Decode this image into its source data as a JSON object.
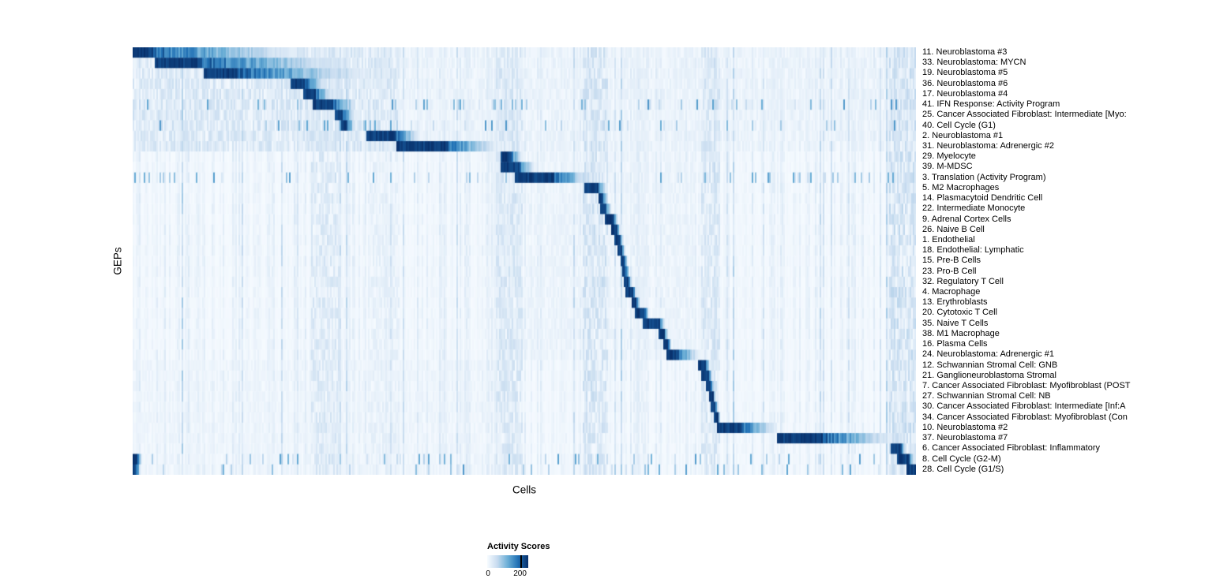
{
  "chart_data": {
    "type": "heatmap",
    "title": "",
    "xlabel": "Cells",
    "ylabel": "GEPs",
    "legend": {
      "title": "Activity Scores",
      "min_label": "0",
      "max_label": "200",
      "min": 0,
      "max": 200,
      "tick_fraction": 0.8
    },
    "colormap_stops": [
      [
        0,
        "#f7fbff"
      ],
      [
        0.25,
        "#c6dbef"
      ],
      [
        0.5,
        "#6baed6"
      ],
      [
        0.75,
        "#2171b5"
      ],
      [
        1,
        "#08306b"
      ]
    ],
    "streaks": [
      {
        "start": 0.228,
        "end": 0.262,
        "strength": 0.2
      },
      {
        "start": 0.3,
        "end": 0.34,
        "strength": 0.12
      },
      {
        "start": 0.463,
        "end": 0.497,
        "strength": 0.22
      },
      {
        "start": 0.575,
        "end": 0.607,
        "strength": 0.26
      },
      {
        "start": 0.64,
        "end": 0.66,
        "strength": 0.12
      },
      {
        "start": 0.726,
        "end": 0.75,
        "strength": 0.22
      },
      {
        "start": 0.87,
        "end": 0.88,
        "strength": 0.1
      },
      {
        "start": 0.965,
        "end": 1.0,
        "strength": 0.28
      }
    ],
    "noise_regions": [
      {
        "row_start": 0,
        "row_end": 9,
        "start": 0.0,
        "end": 0.34,
        "strength": 0.22
      },
      {
        "row_start": 0,
        "row_end": 9,
        "start": 0.34,
        "end": 1.0,
        "strength": 0.1
      },
      {
        "row_start": 10,
        "row_end": 29,
        "start": 0.45,
        "end": 0.72,
        "strength": 0.09
      },
      {
        "row_start": 30,
        "row_end": 40,
        "start": 0.0,
        "end": 0.46,
        "strength": 0.07
      }
    ],
    "rows": [
      {
        "label": "11. Neuroblastoma #3",
        "blocks": [
          {
            "start": 0.0,
            "peak": 0.026,
            "tail": 0.21
          }
        ]
      },
      {
        "label": "33. Neuroblastoma: MYCN",
        "blocks": [
          {
            "start": 0.028,
            "peak": 0.088,
            "tail": 0.27
          }
        ]
      },
      {
        "label": "19. Neuroblastoma #5",
        "blocks": [
          {
            "start": 0.09,
            "peak": 0.134,
            "tail": 0.3
          }
        ]
      },
      {
        "label": "36. Neuroblastoma #6",
        "blocks": [
          {
            "start": 0.202,
            "peak": 0.22,
            "tail": 0.246
          }
        ]
      },
      {
        "label": "17. Neuroblastoma #4",
        "blocks": [
          {
            "start": 0.218,
            "peak": 0.233,
            "tail": 0.254
          }
        ]
      },
      {
        "label": "41. IFN Response: Activity Program",
        "blocks": [
          {
            "start": 0.23,
            "peak": 0.255,
            "tail": 0.285
          }
        ],
        "scatter": true
      },
      {
        "label": "25. Cancer Associated Fibroblast: Intermediate [Myo:",
        "blocks": [
          {
            "start": 0.258,
            "peak": 0.267,
            "tail": 0.284
          }
        ]
      },
      {
        "label": "40. Cell Cycle (G1)",
        "blocks": [
          {
            "start": 0.266,
            "peak": 0.274,
            "tail": 0.284
          }
        ],
        "scatter": true
      },
      {
        "label": "2. Neuroblastoma #1",
        "blocks": [
          {
            "start": 0.299,
            "peak": 0.336,
            "tail": 0.366
          }
        ]
      },
      {
        "label": "31. Neuroblastoma: Adrenergic #2",
        "blocks": [
          {
            "start": 0.336,
            "peak": 0.401,
            "tail": 0.466
          }
        ]
      },
      {
        "label": "29. Myelocyte",
        "blocks": [
          {
            "start": 0.469,
            "peak": 0.482,
            "tail": 0.496
          }
        ]
      },
      {
        "label": "39. M-MDSC",
        "blocks": [
          {
            "start": 0.469,
            "peak": 0.493,
            "tail": 0.512
          }
        ]
      },
      {
        "label": "3. Translation (Activity Program)",
        "blocks": [
          {
            "start": 0.488,
            "peak": 0.538,
            "tail": 0.586
          }
        ],
        "scatter": true
      },
      {
        "label": "5. M2 Macrophages",
        "blocks": [
          {
            "start": 0.577,
            "peak": 0.595,
            "tail": 0.604
          }
        ]
      },
      {
        "label": "14. Plasmacytoid Dendritic Cell",
        "blocks": [
          {
            "start": 0.594,
            "peak": 0.601,
            "tail": 0.607
          }
        ]
      },
      {
        "label": "22. Intermediate Monocyte",
        "blocks": [
          {
            "start": 0.597,
            "peak": 0.604,
            "tail": 0.611
          }
        ]
      },
      {
        "label": "9. Adrenal Cortex Cells",
        "blocks": [
          {
            "start": 0.602,
            "peak": 0.614,
            "tail": 0.619
          }
        ]
      },
      {
        "label": "26. Naive B Cell",
        "blocks": [
          {
            "start": 0.61,
            "peak": 0.618,
            "tail": 0.623
          }
        ]
      },
      {
        "label": "1. Endothelial",
        "blocks": [
          {
            "start": 0.615,
            "peak": 0.622,
            "tail": 0.627
          }
        ]
      },
      {
        "label": "18. Endothelial: Lymphatic",
        "blocks": [
          {
            "start": 0.619,
            "peak": 0.625,
            "tail": 0.629
          }
        ]
      },
      {
        "label": "15. Pre-B Cells",
        "blocks": [
          {
            "start": 0.622,
            "peak": 0.628,
            "tail": 0.632
          }
        ]
      },
      {
        "label": "23. Pro-B Cell",
        "blocks": [
          {
            "start": 0.625,
            "peak": 0.63,
            "tail": 0.634
          }
        ]
      },
      {
        "label": "32. Regulatory T Cell",
        "blocks": [
          {
            "start": 0.628,
            "peak": 0.633,
            "tail": 0.637
          }
        ]
      },
      {
        "label": "4. Macrophage",
        "blocks": [
          {
            "start": 0.63,
            "peak": 0.639,
            "tail": 0.643
          }
        ]
      },
      {
        "label": "13. Erythroblasts",
        "blocks": [
          {
            "start": 0.637,
            "peak": 0.644,
            "tail": 0.648
          }
        ]
      },
      {
        "label": "20. Cytotoxic T Cell",
        "blocks": [
          {
            "start": 0.641,
            "peak": 0.654,
            "tail": 0.659
          }
        ]
      },
      {
        "label": "35. Naive T Cells",
        "blocks": [
          {
            "start": 0.652,
            "peak": 0.674,
            "tail": 0.679
          }
        ]
      },
      {
        "label": "38. M1 Macrophage",
        "blocks": [
          {
            "start": 0.671,
            "peak": 0.679,
            "tail": 0.684
          }
        ]
      },
      {
        "label": "16. Plasma Cells",
        "blocks": [
          {
            "start": 0.677,
            "peak": 0.684,
            "tail": 0.688
          }
        ]
      },
      {
        "label": "24. Neuroblastoma: Adrenergic #1",
        "blocks": [
          {
            "start": 0.682,
            "peak": 0.698,
            "tail": 0.722
          }
        ]
      },
      {
        "label": "12. Schwannian Stromal Cell: GNB",
        "blocks": [
          {
            "start": 0.721,
            "peak": 0.732,
            "tail": 0.737
          }
        ]
      },
      {
        "label": "21. Ganglioneuroblastoma Stromal",
        "blocks": [
          {
            "start": 0.726,
            "peak": 0.735,
            "tail": 0.74
          }
        ]
      },
      {
        "label": "7. Cancer Associated Fibroblast: Myofibroblast (POST",
        "blocks": [
          {
            "start": 0.731,
            "peak": 0.738,
            "tail": 0.743
          }
        ]
      },
      {
        "label": "27. Schwannian Stromal Cell: NB",
        "blocks": [
          {
            "start": 0.735,
            "peak": 0.741,
            "tail": 0.745
          }
        ]
      },
      {
        "label": "30. Cancer Associated Fibroblast: Intermediate [Inf:A",
        "blocks": [
          {
            "start": 0.738,
            "peak": 0.744,
            "tail": 0.748
          }
        ]
      },
      {
        "label": "34. Cancer Associated Fibroblast: Myofibroblast (Con",
        "blocks": [
          {
            "start": 0.741,
            "peak": 0.747,
            "tail": 0.751
          }
        ]
      },
      {
        "label": "10. Neuroblastoma #2",
        "blocks": [
          {
            "start": 0.745,
            "peak": 0.776,
            "tail": 0.823
          }
        ]
      },
      {
        "label": "37. Neuroblastoma #7",
        "blocks": [
          {
            "start": 0.823,
            "peak": 0.881,
            "tail": 0.97
          }
        ]
      },
      {
        "label": "6. Cancer Associated Fibroblast: Inflammatory",
        "blocks": [
          {
            "start": 0.968,
            "peak": 0.981,
            "tail": 0.987
          }
        ]
      },
      {
        "label": "8. Cell Cycle (G2-M)",
        "blocks": [
          {
            "start": 0.976,
            "peak": 0.991,
            "tail": 0.998
          },
          {
            "start": 0.0,
            "peak": 0.006,
            "tail": 0.012
          }
        ],
        "scatter": true
      },
      {
        "label": "28. Cell Cycle (G1/S)",
        "blocks": [
          {
            "start": 0.988,
            "peak": 1.0,
            "tail": 1.0
          },
          {
            "start": 0.0,
            "peak": 0.005,
            "tail": 0.01
          }
        ],
        "scatter": true
      }
    ]
  }
}
